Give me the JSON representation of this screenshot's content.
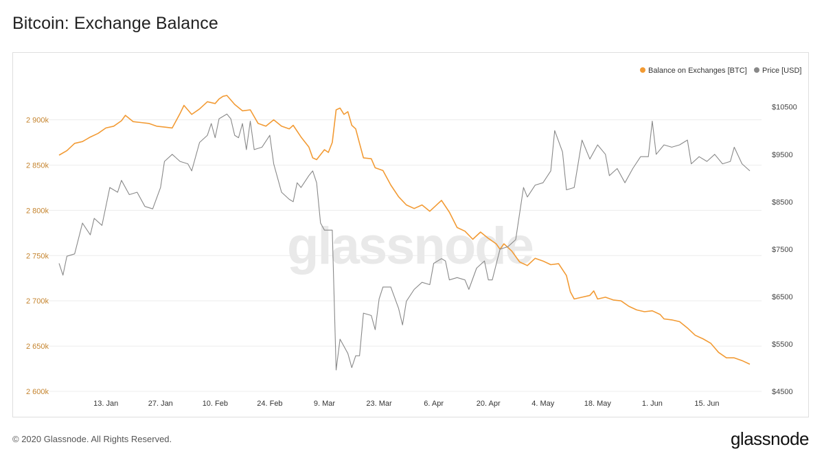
{
  "header": {
    "title": "Bitcoin: Exchange Balance"
  },
  "footer": {
    "copyright": "© 2020 Glassnode. All Rights Reserved.",
    "logo_text": "glassnode"
  },
  "watermark": "glassnode",
  "colors": {
    "balance": "#f29a33",
    "price": "#888888",
    "grid": "#ececec",
    "left_axis_text": "#c4832d"
  },
  "chart_data": {
    "type": "line",
    "title": "Bitcoin: Exchange Balance",
    "legend": {
      "placement": "top-right",
      "items": [
        {
          "label": "Balance on Exchanges [BTC]",
          "color": "#f29a33"
        },
        {
          "label": "Price [USD]",
          "color": "#888888"
        }
      ]
    },
    "x_range": [
      "2020-01-01",
      "2020-06-26"
    ],
    "x_ticks": [
      {
        "date": "2020-01-13",
        "label": "13. Jan"
      },
      {
        "date": "2020-01-27",
        "label": "27. Jan"
      },
      {
        "date": "2020-02-10",
        "label": "10. Feb"
      },
      {
        "date": "2020-02-24",
        "label": "24. Feb"
      },
      {
        "date": "2020-03-09",
        "label": "9. Mar"
      },
      {
        "date": "2020-03-23",
        "label": "23. Mar"
      },
      {
        "date": "2020-04-06",
        "label": "6. Apr"
      },
      {
        "date": "2020-04-20",
        "label": "20. Apr"
      },
      {
        "date": "2020-05-04",
        "label": "4. May"
      },
      {
        "date": "2020-05-18",
        "label": "18. May"
      },
      {
        "date": "2020-06-01",
        "label": "1. Jun"
      },
      {
        "date": "2020-06-15",
        "label": "15. Jun"
      }
    ],
    "y_left": {
      "range": [
        2600000,
        2930000
      ],
      "ticks": [
        {
          "value": 2600000,
          "label": "2 600k"
        },
        {
          "value": 2650000,
          "label": "2 650k"
        },
        {
          "value": 2700000,
          "label": "2 700k"
        },
        {
          "value": 2750000,
          "label": "2 750k"
        },
        {
          "value": 2800000,
          "label": "2 800k"
        },
        {
          "value": 2850000,
          "label": "2 850k"
        },
        {
          "value": 2900000,
          "label": "2 900k"
        }
      ]
    },
    "y_right": {
      "range": [
        4500,
        10800
      ],
      "ticks": [
        {
          "value": 4500,
          "label": "$4500"
        },
        {
          "value": 5500,
          "label": "$5500"
        },
        {
          "value": 6500,
          "label": "$6500"
        },
        {
          "value": 7500,
          "label": "$7500"
        },
        {
          "value": 8500,
          "label": "$8500"
        },
        {
          "value": 9500,
          "label": "$9500"
        },
        {
          "value": 10500,
          "label": "$10500"
        }
      ]
    },
    "grid": true,
    "series": [
      {
        "name": "Balance on Exchanges [BTC]",
        "axis": "left",
        "points": [
          [
            "2020-01-01",
            2861000
          ],
          [
            "2020-01-03",
            2866000
          ],
          [
            "2020-01-05",
            2874000
          ],
          [
            "2020-01-07",
            2876000
          ],
          [
            "2020-01-09",
            2881000
          ],
          [
            "2020-01-11",
            2885000
          ],
          [
            "2020-01-13",
            2891000
          ],
          [
            "2020-01-15",
            2893000
          ],
          [
            "2020-01-17",
            2899000
          ],
          [
            "2020-01-18",
            2905000
          ],
          [
            "2020-01-20",
            2898000
          ],
          [
            "2020-01-22",
            2897000
          ],
          [
            "2020-01-24",
            2896000
          ],
          [
            "2020-01-26",
            2893000
          ],
          [
            "2020-01-28",
            2892000
          ],
          [
            "2020-01-30",
            2891000
          ],
          [
            "2020-02-01",
            2907000
          ],
          [
            "2020-02-02",
            2916000
          ],
          [
            "2020-02-04",
            2906000
          ],
          [
            "2020-02-06",
            2912000
          ],
          [
            "2020-02-08",
            2920000
          ],
          [
            "2020-02-10",
            2918000
          ],
          [
            "2020-02-11",
            2923000
          ],
          [
            "2020-02-12",
            2926000
          ],
          [
            "2020-02-13",
            2927000
          ],
          [
            "2020-02-15",
            2917000
          ],
          [
            "2020-02-17",
            2910000
          ],
          [
            "2020-02-19",
            2911000
          ],
          [
            "2020-02-21",
            2896000
          ],
          [
            "2020-02-23",
            2893000
          ],
          [
            "2020-02-25",
            2900000
          ],
          [
            "2020-02-27",
            2893000
          ],
          [
            "2020-02-29",
            2890000
          ],
          [
            "2020-03-01",
            2894000
          ],
          [
            "2020-03-03",
            2881000
          ],
          [
            "2020-03-05",
            2870000
          ],
          [
            "2020-03-06",
            2858000
          ],
          [
            "2020-03-07",
            2856000
          ],
          [
            "2020-03-09",
            2867000
          ],
          [
            "2020-03-10",
            2864000
          ],
          [
            "2020-03-11",
            2875000
          ],
          [
            "2020-03-12",
            2911000
          ],
          [
            "2020-03-13",
            2913000
          ],
          [
            "2020-03-14",
            2906000
          ],
          [
            "2020-03-15",
            2909000
          ],
          [
            "2020-03-16",
            2894000
          ],
          [
            "2020-03-17",
            2890000
          ],
          [
            "2020-03-18",
            2874000
          ],
          [
            "2020-03-19",
            2858000
          ],
          [
            "2020-03-21",
            2857000
          ],
          [
            "2020-03-22",
            2847000
          ],
          [
            "2020-03-24",
            2844000
          ],
          [
            "2020-03-26",
            2828000
          ],
          [
            "2020-03-28",
            2815000
          ],
          [
            "2020-03-30",
            2806000
          ],
          [
            "2020-04-01",
            2802000
          ],
          [
            "2020-04-03",
            2806000
          ],
          [
            "2020-04-05",
            2799000
          ],
          [
            "2020-04-07",
            2807000
          ],
          [
            "2020-04-08",
            2811000
          ],
          [
            "2020-04-10",
            2798000
          ],
          [
            "2020-04-12",
            2781000
          ],
          [
            "2020-04-14",
            2777000
          ],
          [
            "2020-04-16",
            2768000
          ],
          [
            "2020-04-18",
            2776000
          ],
          [
            "2020-04-20",
            2769000
          ],
          [
            "2020-04-22",
            2763000
          ],
          [
            "2020-04-23",
            2757000
          ],
          [
            "2020-04-24",
            2763000
          ],
          [
            "2020-04-26",
            2755000
          ],
          [
            "2020-04-28",
            2743000
          ],
          [
            "2020-04-30",
            2739000
          ],
          [
            "2020-05-02",
            2747000
          ],
          [
            "2020-05-04",
            2744000
          ],
          [
            "2020-05-06",
            2740000
          ],
          [
            "2020-05-08",
            2741000
          ],
          [
            "2020-05-10",
            2728000
          ],
          [
            "2020-05-11",
            2710000
          ],
          [
            "2020-05-12",
            2702000
          ],
          [
            "2020-05-14",
            2704000
          ],
          [
            "2020-05-16",
            2706000
          ],
          [
            "2020-05-17",
            2711000
          ],
          [
            "2020-05-18",
            2702000
          ],
          [
            "2020-05-20",
            2704000
          ],
          [
            "2020-05-22",
            2701000
          ],
          [
            "2020-05-24",
            2700000
          ],
          [
            "2020-05-26",
            2694000
          ],
          [
            "2020-05-28",
            2690000
          ],
          [
            "2020-05-30",
            2688000
          ],
          [
            "2020-06-01",
            2689000
          ],
          [
            "2020-06-03",
            2685000
          ],
          [
            "2020-06-04",
            2680000
          ],
          [
            "2020-06-06",
            2679000
          ],
          [
            "2020-06-08",
            2677000
          ],
          [
            "2020-06-10",
            2670000
          ],
          [
            "2020-06-12",
            2662000
          ],
          [
            "2020-06-14",
            2658000
          ],
          [
            "2020-06-16",
            2653000
          ],
          [
            "2020-06-18",
            2643000
          ],
          [
            "2020-06-20",
            2637000
          ],
          [
            "2020-06-22",
            2637000
          ],
          [
            "2020-06-24",
            2634000
          ],
          [
            "2020-06-26",
            2630000
          ]
        ]
      },
      {
        "name": "Price [USD]",
        "axis": "right",
        "points": [
          [
            "2020-01-01",
            7200
          ],
          [
            "2020-01-02",
            6950
          ],
          [
            "2020-01-03",
            7350
          ],
          [
            "2020-01-05",
            7400
          ],
          [
            "2020-01-07",
            8050
          ],
          [
            "2020-01-09",
            7800
          ],
          [
            "2020-01-10",
            8150
          ],
          [
            "2020-01-12",
            8000
          ],
          [
            "2020-01-14",
            8800
          ],
          [
            "2020-01-16",
            8700
          ],
          [
            "2020-01-17",
            8950
          ],
          [
            "2020-01-19",
            8650
          ],
          [
            "2020-01-21",
            8700
          ],
          [
            "2020-01-23",
            8400
          ],
          [
            "2020-01-25",
            8350
          ],
          [
            "2020-01-27",
            8800
          ],
          [
            "2020-01-28",
            9350
          ],
          [
            "2020-01-30",
            9500
          ],
          [
            "2020-02-01",
            9350
          ],
          [
            "2020-02-03",
            9300
          ],
          [
            "2020-02-04",
            9150
          ],
          [
            "2020-02-06",
            9750
          ],
          [
            "2020-02-08",
            9900
          ],
          [
            "2020-02-09",
            10150
          ],
          [
            "2020-02-10",
            9850
          ],
          [
            "2020-02-11",
            10250
          ],
          [
            "2020-02-13",
            10350
          ],
          [
            "2020-02-14",
            10250
          ],
          [
            "2020-02-15",
            9900
          ],
          [
            "2020-02-16",
            9850
          ],
          [
            "2020-02-17",
            10150
          ],
          [
            "2020-02-18",
            9600
          ],
          [
            "2020-02-19",
            10200
          ],
          [
            "2020-02-20",
            9600
          ],
          [
            "2020-02-22",
            9650
          ],
          [
            "2020-02-24",
            9900
          ],
          [
            "2020-02-25",
            9300
          ],
          [
            "2020-02-27",
            8700
          ],
          [
            "2020-02-29",
            8550
          ],
          [
            "2020-03-01",
            8500
          ],
          [
            "2020-03-02",
            8900
          ],
          [
            "2020-03-03",
            8800
          ],
          [
            "2020-03-05",
            9050
          ],
          [
            "2020-03-06",
            9150
          ],
          [
            "2020-03-07",
            8900
          ],
          [
            "2020-03-08",
            8050
          ],
          [
            "2020-03-09",
            7900
          ],
          [
            "2020-03-11",
            7900
          ],
          [
            "2020-03-12",
            4950
          ],
          [
            "2020-03-13",
            5600
          ],
          [
            "2020-03-15",
            5300
          ],
          [
            "2020-03-16",
            5000
          ],
          [
            "2020-03-17",
            5250
          ],
          [
            "2020-03-18",
            5250
          ],
          [
            "2020-03-19",
            6150
          ],
          [
            "2020-03-21",
            6100
          ],
          [
            "2020-03-22",
            5800
          ],
          [
            "2020-03-23",
            6450
          ],
          [
            "2020-03-24",
            6700
          ],
          [
            "2020-03-26",
            6700
          ],
          [
            "2020-03-28",
            6250
          ],
          [
            "2020-03-29",
            5900
          ],
          [
            "2020-03-30",
            6400
          ],
          [
            "2020-04-01",
            6650
          ],
          [
            "2020-04-03",
            6800
          ],
          [
            "2020-04-05",
            6750
          ],
          [
            "2020-04-06",
            7200
          ],
          [
            "2020-04-08",
            7300
          ],
          [
            "2020-04-09",
            7250
          ],
          [
            "2020-04-10",
            6850
          ],
          [
            "2020-04-12",
            6900
          ],
          [
            "2020-04-14",
            6850
          ],
          [
            "2020-04-15",
            6650
          ],
          [
            "2020-04-17",
            7100
          ],
          [
            "2020-04-19",
            7250
          ],
          [
            "2020-04-20",
            6850
          ],
          [
            "2020-04-21",
            6850
          ],
          [
            "2020-04-23",
            7500
          ],
          [
            "2020-04-25",
            7550
          ],
          [
            "2020-04-27",
            7700
          ],
          [
            "2020-04-29",
            8800
          ],
          [
            "2020-04-30",
            8600
          ],
          [
            "2020-05-02",
            8850
          ],
          [
            "2020-05-04",
            8900
          ],
          [
            "2020-05-06",
            9150
          ],
          [
            "2020-05-07",
            10000
          ],
          [
            "2020-05-09",
            9550
          ],
          [
            "2020-05-10",
            8750
          ],
          [
            "2020-05-12",
            8800
          ],
          [
            "2020-05-13",
            9300
          ],
          [
            "2020-05-14",
            9800
          ],
          [
            "2020-05-16",
            9400
          ],
          [
            "2020-05-18",
            9700
          ],
          [
            "2020-05-20",
            9500
          ],
          [
            "2020-05-21",
            9050
          ],
          [
            "2020-05-23",
            9200
          ],
          [
            "2020-05-25",
            8900
          ],
          [
            "2020-05-27",
            9200
          ],
          [
            "2020-05-29",
            9450
          ],
          [
            "2020-05-31",
            9450
          ],
          [
            "2020-06-01",
            10200
          ],
          [
            "2020-06-02",
            9500
          ],
          [
            "2020-06-04",
            9700
          ],
          [
            "2020-06-06",
            9650
          ],
          [
            "2020-06-08",
            9700
          ],
          [
            "2020-06-10",
            9800
          ],
          [
            "2020-06-11",
            9300
          ],
          [
            "2020-06-13",
            9450
          ],
          [
            "2020-06-15",
            9350
          ],
          [
            "2020-06-17",
            9500
          ],
          [
            "2020-06-19",
            9300
          ],
          [
            "2020-06-21",
            9350
          ],
          [
            "2020-06-22",
            9650
          ],
          [
            "2020-06-24",
            9300
          ],
          [
            "2020-06-26",
            9150
          ]
        ]
      }
    ]
  }
}
